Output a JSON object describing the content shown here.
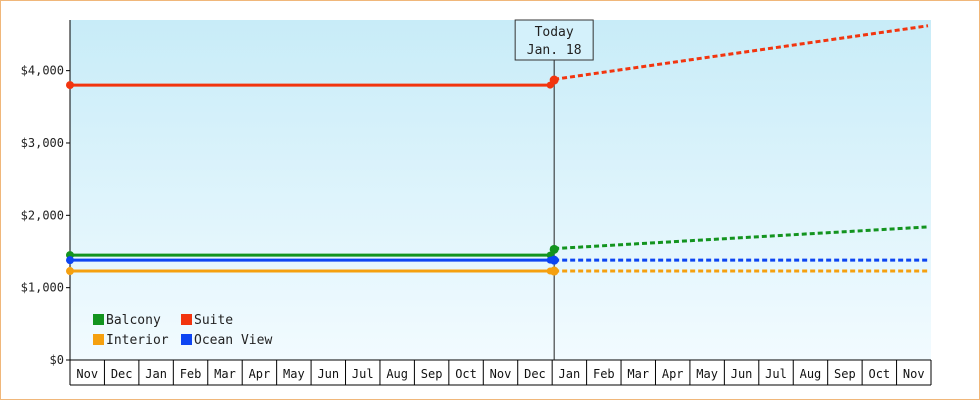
{
  "chart_data": {
    "type": "line",
    "title": "",
    "xlabel": "",
    "ylabel": "",
    "ylim": [
      0,
      4700
    ],
    "yticks": [
      0,
      1000,
      2000,
      3000,
      4000
    ],
    "ytick_labels": [
      "$0",
      "$1,000",
      "$2,000",
      "$3,000",
      "$4,000"
    ],
    "x_months": [
      "Nov",
      "Dec",
      "Jan",
      "Feb",
      "Mar",
      "Apr",
      "May",
      "Jun",
      "Jul",
      "Aug",
      "Sep",
      "Oct",
      "Nov",
      "Dec",
      "Jan",
      "Feb",
      "Mar",
      "Apr",
      "May",
      "Jun",
      "Jul",
      "Aug",
      "Sep",
      "Oct",
      "Nov"
    ],
    "today_index": 14,
    "today_label": [
      "Today",
      "Jan. 18"
    ],
    "grid": false,
    "background_gradient": [
      "#c8ecf8",
      "#f2fbff"
    ],
    "legend_position": "bottom-left",
    "series": [
      {
        "name": "Balcony",
        "color": "#13941f",
        "history": [
          [
            0,
            1450
          ],
          [
            14,
            1450
          ]
        ],
        "today_value": 1530,
        "forecast": [
          [
            14,
            1540
          ],
          [
            24,
            1840
          ]
        ]
      },
      {
        "name": "Suite",
        "color": "#f2350f",
        "history": [
          [
            0,
            3800
          ],
          [
            14,
            3800
          ]
        ],
        "today_value": 3870,
        "forecast": [
          [
            14,
            3880
          ],
          [
            24,
            4620
          ]
        ]
      },
      {
        "name": "Interior",
        "color": "#f5a00f",
        "history": [
          [
            0,
            1230
          ],
          [
            14,
            1230
          ]
        ],
        "today_value": 1230,
        "forecast": [
          [
            14,
            1230
          ],
          [
            24,
            1230
          ]
        ]
      },
      {
        "name": "Ocean View",
        "color": "#0d45f2",
        "history": [
          [
            0,
            1380
          ],
          [
            14,
            1380
          ]
        ],
        "today_value": 1380,
        "forecast": [
          [
            14,
            1380
          ],
          [
            24,
            1380
          ]
        ]
      }
    ]
  }
}
